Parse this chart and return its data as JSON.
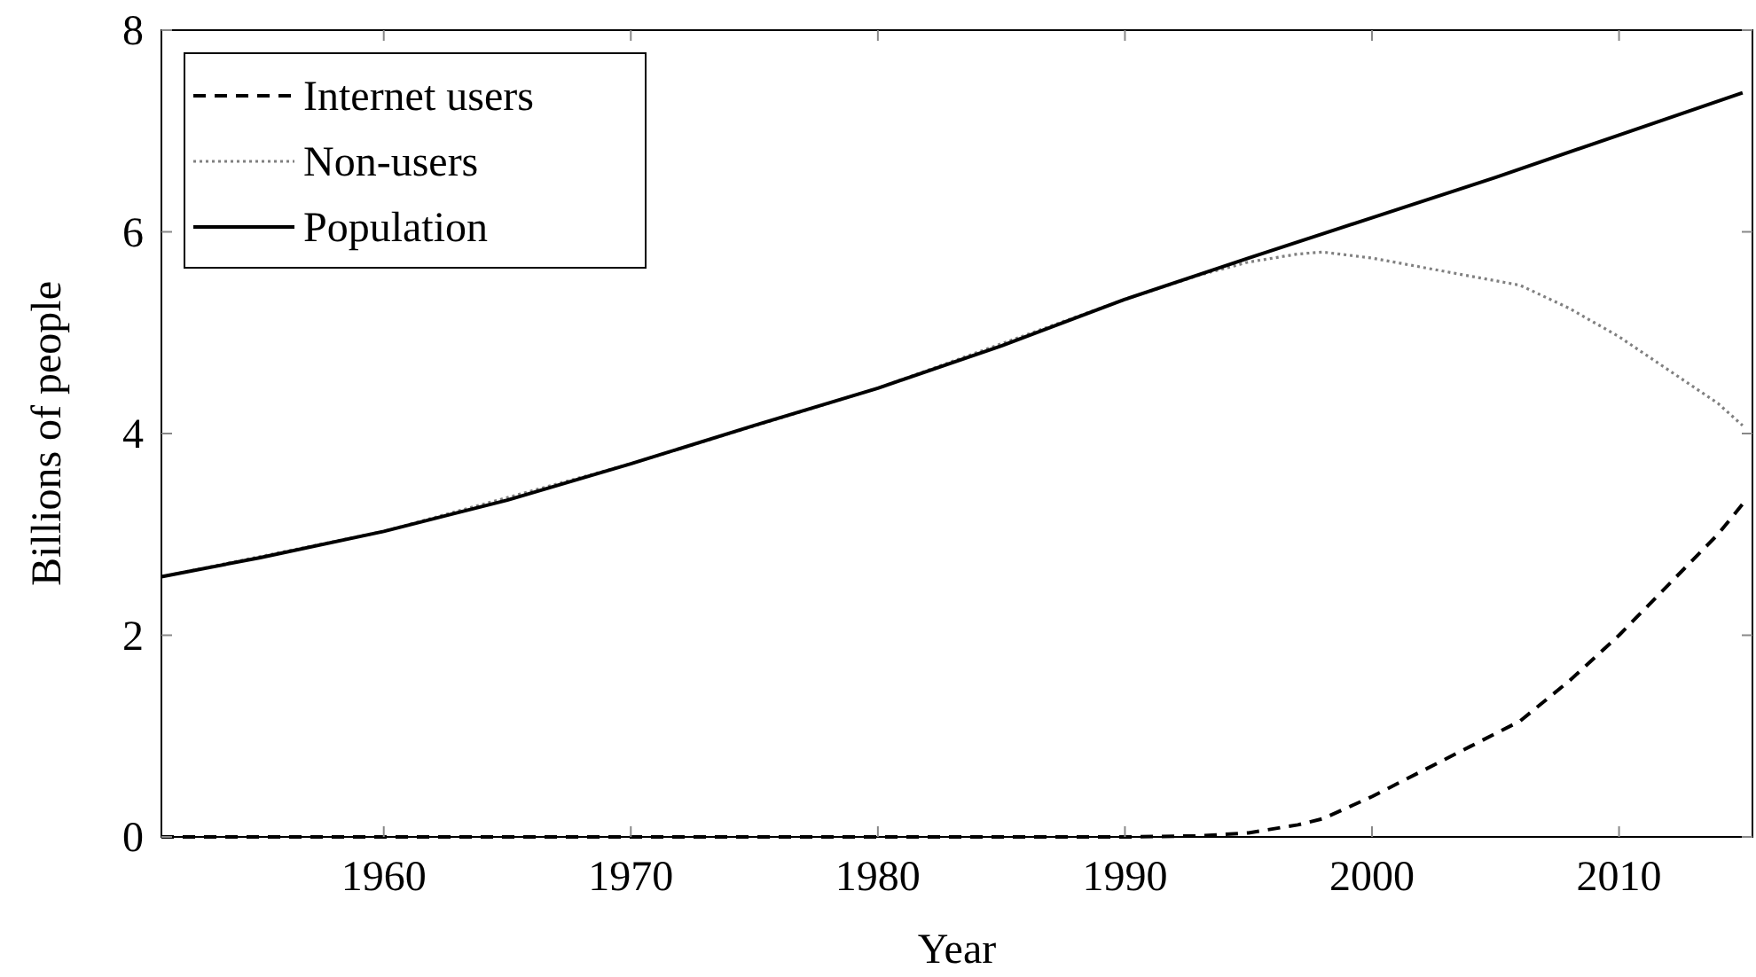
{
  "chart_data": {
    "type": "line",
    "xlabel": "Year",
    "ylabel": "Billions of people",
    "xlim": [
      1951,
      2015.4
    ],
    "ylim": [
      0,
      8
    ],
    "xticks": [
      1960,
      1970,
      1980,
      1990,
      2000,
      2010
    ],
    "yticks": [
      0,
      2,
      4,
      6,
      8
    ],
    "legend": "top left",
    "grid": false,
    "series": [
      {
        "name": "Internet users",
        "color": "#000000",
        "line_style": "dashed",
        "x": [
          1951,
          1990,
          1993,
          1995,
          1997,
          1998,
          2000,
          2002,
          2004,
          2006,
          2008,
          2010,
          2012,
          2014,
          2015
        ],
        "values": [
          0,
          0,
          0.01,
          0.04,
          0.12,
          0.18,
          0.4,
          0.65,
          0.9,
          1.15,
          1.55,
          2.0,
          2.5,
          3.0,
          3.3
        ]
      },
      {
        "name": "Non-users",
        "color": "#808080",
        "line_style": "dotted",
        "x": [
          1951,
          1960,
          1970,
          1980,
          1990,
          1993,
          1995,
          1997,
          1998,
          2000,
          2002,
          2004,
          2006,
          2008,
          2010,
          2012,
          2014,
          2015
        ],
        "values": [
          2.58,
          3.03,
          3.7,
          4.45,
          5.33,
          5.57,
          5.7,
          5.78,
          5.8,
          5.74,
          5.65,
          5.56,
          5.47,
          5.24,
          4.96,
          4.63,
          4.3,
          4.08
        ]
      },
      {
        "name": "Population",
        "color": "#000000",
        "line_style": "solid",
        "x": [
          1951,
          1955,
          1960,
          1965,
          1970,
          1975,
          1980,
          1985,
          1990,
          1995,
          2000,
          2005,
          2010,
          2015
        ],
        "values": [
          2.58,
          2.77,
          3.03,
          3.34,
          3.7,
          4.08,
          4.45,
          4.87,
          5.33,
          5.74,
          6.14,
          6.54,
          6.96,
          7.38
        ]
      }
    ]
  }
}
